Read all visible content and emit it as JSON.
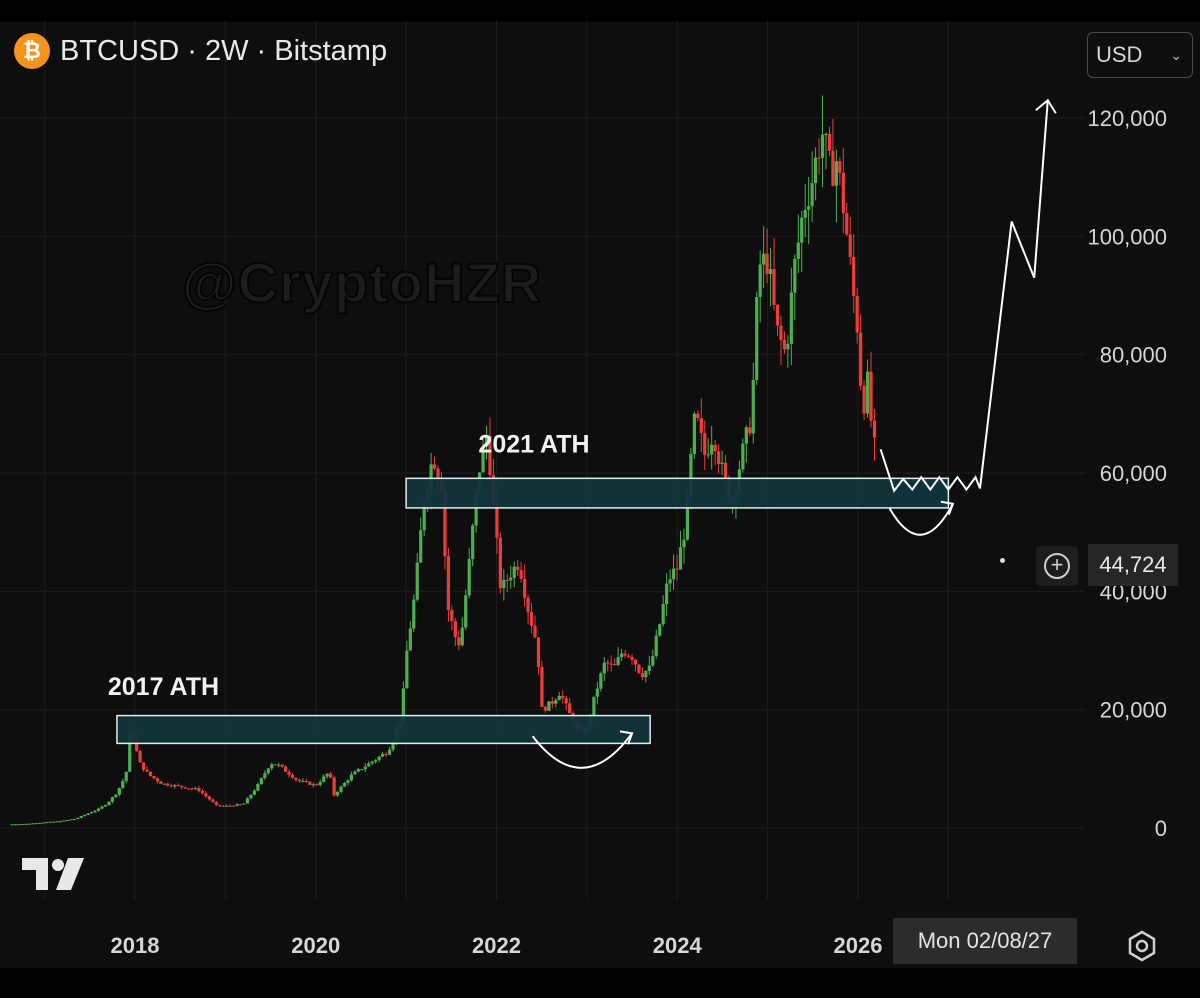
{
  "header": {
    "coin_icon": "bitcoin-icon",
    "coin_symbol": "₿",
    "symbol_title": "BTCUSD · 2W · Bitstamp",
    "currency": "USD"
  },
  "watermark": "@CryptoHZR",
  "price_label": "44,724",
  "crosshair_date": "Mon 02/08/27",
  "chart_data": {
    "type": "candlestick",
    "x_ticks": [
      "2018",
      "2020",
      "2022",
      "2024",
      "2026"
    ],
    "y_ticks": [
      "0",
      "20,000",
      "40,000",
      "60,000",
      "80,000",
      "100,000",
      "120,000"
    ],
    "y_tick_values": [
      0,
      20000,
      40000,
      60000,
      80000,
      100000,
      120000
    ],
    "ylim": [
      -3000,
      128000
    ],
    "xlim": [
      2016.6,
      2027.6
    ],
    "colors": {
      "up": "#4caf50",
      "down": "#ef3b3b",
      "zone_fill": "#12363b",
      "zone_stroke": "#dfeef0",
      "projection": "#ffffff"
    },
    "annotations": [
      {
        "label": "2017 ATH",
        "x": 2017.7,
        "y": 22500
      },
      {
        "label": "2021 ATH",
        "x": 2021.8,
        "y": 63500
      }
    ],
    "zones": [
      {
        "x0": 2017.8,
        "x1": 2023.7,
        "y0": 14300,
        "y1": 19000
      },
      {
        "x0": 2021.0,
        "x1": 2027.0,
        "y0": 54100,
        "y1": 59100
      }
    ],
    "arcs": [
      {
        "x0": 2022.4,
        "x1": 2023.5,
        "y_start": 15500,
        "y_low": 10000,
        "y_end": 16000
      },
      {
        "x0": 2026.35,
        "x1": 2027.05,
        "y_start": 54000,
        "y_low": 49500,
        "y_end": 54800
      }
    ],
    "projection_path": [
      [
        2026.25,
        64000
      ],
      [
        2026.4,
        57000
      ],
      [
        2026.5,
        59000
      ],
      [
        2026.6,
        57200
      ],
      [
        2026.7,
        59300
      ],
      [
        2026.8,
        57200
      ],
      [
        2026.9,
        59300
      ],
      [
        2027.0,
        57200
      ],
      [
        2027.1,
        59300
      ],
      [
        2027.2,
        57200
      ],
      [
        2027.3,
        59300
      ],
      [
        2027.35,
        57400
      ],
      [
        2027.7,
        102500
      ],
      [
        2027.95,
        93000
      ],
      [
        2028.1,
        123000
      ]
    ],
    "price_path": [
      [
        2016.6,
        600
      ],
      [
        2016.8,
        700
      ],
      [
        2017.0,
        950
      ],
      [
        2017.2,
        1200
      ],
      [
        2017.35,
        1600
      ],
      [
        2017.5,
        2600
      ],
      [
        2017.6,
        3200
      ],
      [
        2017.7,
        4300
      ],
      [
        2017.8,
        6000
      ],
      [
        2017.9,
        9000
      ],
      [
        2017.95,
        17000
      ],
      [
        2018.0,
        14000
      ],
      [
        2018.05,
        11000
      ],
      [
        2018.15,
        9000
      ],
      [
        2018.3,
        7500
      ],
      [
        2018.5,
        7000
      ],
      [
        2018.7,
        6500
      ],
      [
        2018.9,
        3800
      ],
      [
        2019.0,
        3700
      ],
      [
        2019.2,
        4000
      ],
      [
        2019.35,
        7000
      ],
      [
        2019.5,
        11000
      ],
      [
        2019.6,
        10500
      ],
      [
        2019.8,
        8000
      ],
      [
        2020.0,
        7200
      ],
      [
        2020.15,
        9500
      ],
      [
        2020.2,
        5500
      ],
      [
        2020.4,
        9000
      ],
      [
        2020.6,
        11000
      ],
      [
        2020.8,
        13000
      ],
      [
        2020.95,
        19000
      ],
      [
        2021.0,
        29000
      ],
      [
        2021.1,
        40000
      ],
      [
        2021.2,
        56000
      ],
      [
        2021.3,
        63000
      ],
      [
        2021.4,
        58000
      ],
      [
        2021.45,
        38000
      ],
      [
        2021.55,
        32000
      ],
      [
        2021.6,
        31000
      ],
      [
        2021.7,
        45000
      ],
      [
        2021.8,
        60000
      ],
      [
        2021.9,
        67000
      ],
      [
        2021.95,
        57000
      ],
      [
        2022.05,
        40000
      ],
      [
        2022.15,
        43000
      ],
      [
        2022.25,
        45000
      ],
      [
        2022.35,
        37000
      ],
      [
        2022.45,
        31000
      ],
      [
        2022.5,
        20000
      ],
      [
        2022.6,
        21000
      ],
      [
        2022.7,
        23000
      ],
      [
        2022.8,
        19500
      ],
      [
        2022.9,
        16500
      ],
      [
        2023.0,
        16700
      ],
      [
        2023.1,
        23000
      ],
      [
        2023.2,
        28000
      ],
      [
        2023.3,
        27000
      ],
      [
        2023.4,
        30000
      ],
      [
        2023.5,
        29000
      ],
      [
        2023.6,
        26000
      ],
      [
        2023.7,
        27000
      ],
      [
        2023.8,
        34000
      ],
      [
        2023.9,
        42000
      ],
      [
        2024.0,
        44000
      ],
      [
        2024.1,
        52000
      ],
      [
        2024.15,
        62000
      ],
      [
        2024.2,
        70000
      ],
      [
        2024.3,
        63000
      ],
      [
        2024.4,
        67000
      ],
      [
        2024.5,
        60000
      ],
      [
        2024.6,
        55000
      ],
      [
        2024.7,
        62000
      ],
      [
        2024.8,
        68000
      ],
      [
        2024.85,
        77000
      ],
      [
        2024.9,
        95000
      ],
      [
        2025.0,
        96000
      ],
      [
        2025.1,
        84000
      ],
      [
        2025.2,
        80000
      ],
      [
        2025.3,
        95000
      ],
      [
        2025.4,
        105000
      ],
      [
        2025.5,
        110000
      ],
      [
        2025.6,
        118000
      ],
      [
        2025.7,
        110000
      ],
      [
        2025.75,
        114000
      ],
      [
        2025.85,
        104000
      ],
      [
        2025.95,
        90000
      ],
      [
        2026.0,
        84000
      ],
      [
        2026.05,
        70000
      ],
      [
        2026.1,
        76000
      ],
      [
        2026.15,
        68000
      ],
      [
        2026.2,
        62000
      ]
    ]
  }
}
